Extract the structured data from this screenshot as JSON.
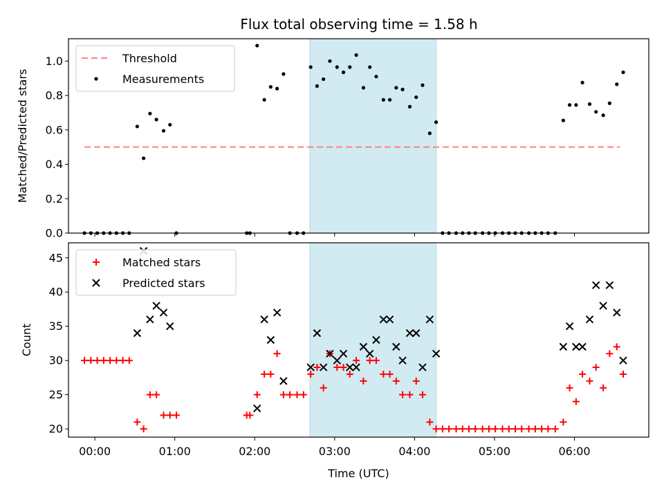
{
  "title": "Flux total observing time = 1.58 h",
  "colors": {
    "threshold": "#ff7f7f",
    "measurement": "#000000",
    "matched": "#ff0000",
    "predicted": "#000000",
    "band": "#add8e6"
  },
  "chart_data": [
    {
      "type": "scatter",
      "name": "ratio",
      "ylabel": "Matched/Predicted stars",
      "xlim": [
        -0.33,
        6.93
      ],
      "ylim": [
        0,
        1.13
      ],
      "yticks": [
        0.0,
        0.2,
        0.4,
        0.6,
        0.8,
        1.0
      ],
      "ytick_labels": [
        "0.0",
        "0.2",
        "0.4",
        "0.6",
        "0.8",
        "1.0"
      ],
      "highlight_band": [
        2.69,
        4.27
      ],
      "threshold": {
        "label": "Threshold",
        "value": 0.5,
        "x_range": [
          -0.13,
          6.57
        ]
      },
      "legend": [
        "Threshold",
        "Measurements"
      ],
      "series": [
        {
          "name": "Measurements",
          "x": [
            -0.13,
            -0.05,
            0.03,
            0.11,
            0.19,
            0.27,
            0.35,
            0.43,
            0.53,
            0.61,
            0.69,
            0.77,
            0.86,
            0.94,
            1.02,
            1.9,
            1.94,
            2.03,
            2.12,
            2.2,
            2.28,
            2.36,
            2.44,
            2.53,
            2.61,
            2.7,
            2.78,
            2.86,
            2.94,
            3.03,
            3.11,
            3.19,
            3.27,
            3.36,
            3.44,
            3.52,
            3.61,
            3.69,
            3.77,
            3.85,
            3.94,
            4.02,
            4.1,
            4.19,
            4.27,
            4.35,
            4.43,
            4.52,
            4.6,
            4.68,
            4.76,
            4.85,
            4.93,
            5.01,
            5.1,
            5.18,
            5.26,
            5.34,
            5.43,
            5.51,
            5.59,
            5.67,
            5.76,
            5.86,
            5.94,
            6.02,
            6.1,
            6.19,
            6.27,
            6.36,
            6.44,
            6.53,
            6.61
          ],
          "y": [
            0,
            0,
            0,
            0,
            0,
            0,
            0,
            0,
            0.62,
            0.435,
            0.695,
            0.66,
            0.595,
            0.63,
            0,
            0,
            0,
            1.09,
            0.775,
            0.85,
            0.84,
            0.925,
            0,
            0,
            0,
            0.965,
            0.855,
            0.895,
            1.0,
            0.965,
            0.935,
            0.965,
            1.035,
            0.845,
            0.965,
            0.91,
            0.775,
            0.775,
            0.845,
            0.835,
            0.735,
            0.79,
            0.86,
            0.58,
            0.645,
            0,
            0,
            0,
            0,
            0,
            0,
            0,
            0,
            0,
            0,
            0,
            0,
            0,
            0,
            0,
            0,
            0,
            0,
            0.655,
            0.745,
            0.745,
            0.875,
            0.75,
            0.705,
            0.685,
            0.755,
            0.865,
            0.935
          ]
        }
      ]
    },
    {
      "type": "scatter",
      "name": "counts",
      "xlabel": "Time (UTC)",
      "ylabel": "Count",
      "xlim": [
        -0.33,
        6.93
      ],
      "ylim": [
        18.8,
        47.2
      ],
      "xticks": [
        0,
        1,
        2,
        3,
        4,
        5,
        6
      ],
      "xtick_labels": [
        "00:00",
        "01:00",
        "02:00",
        "03:00",
        "04:00",
        "05:00",
        "06:00"
      ],
      "yticks": [
        20,
        25,
        30,
        35,
        40,
        45
      ],
      "ytick_labels": [
        "20",
        "25",
        "30",
        "35",
        "40",
        "45"
      ],
      "highlight_band": [
        2.69,
        4.27
      ],
      "legend": [
        "Matched stars",
        "Predicted stars"
      ],
      "series": [
        {
          "name": "Matched stars",
          "x": [
            -0.13,
            -0.05,
            0.03,
            0.11,
            0.19,
            0.27,
            0.35,
            0.43,
            0.53,
            0.61,
            0.69,
            0.77,
            0.86,
            0.94,
            1.02,
            1.9,
            1.94,
            2.03,
            2.12,
            2.2,
            2.28,
            2.36,
            2.44,
            2.53,
            2.61,
            2.7,
            2.78,
            2.86,
            2.94,
            3.03,
            3.11,
            3.19,
            3.27,
            3.36,
            3.44,
            3.52,
            3.61,
            3.69,
            3.77,
            3.85,
            3.94,
            4.02,
            4.1,
            4.19,
            4.27,
            4.35,
            4.43,
            4.52,
            4.6,
            4.68,
            4.76,
            4.85,
            4.93,
            5.01,
            5.1,
            5.18,
            5.26,
            5.34,
            5.43,
            5.51,
            5.59,
            5.67,
            5.76,
            5.86,
            5.94,
            6.02,
            6.1,
            6.19,
            6.27,
            6.36,
            6.44,
            6.53,
            6.61
          ],
          "y": [
            30,
            30,
            30,
            30,
            30,
            30,
            30,
            30,
            21,
            20,
            25,
            25,
            22,
            22,
            22,
            22,
            22,
            25,
            28,
            28,
            31,
            25,
            25,
            25,
            25,
            28,
            29,
            26,
            31,
            29,
            29,
            28,
            30,
            27,
            30,
            30,
            28,
            28,
            27,
            25,
            25,
            27,
            25,
            21,
            20,
            20,
            20,
            20,
            20,
            20,
            20,
            20,
            20,
            20,
            20,
            20,
            20,
            20,
            20,
            20,
            20,
            20,
            20,
            21,
            26,
            24,
            28,
            27,
            29,
            26,
            31,
            32,
            28
          ]
        },
        {
          "name": "Predicted stars",
          "x": [
            0.53,
            0.61,
            0.69,
            0.77,
            0.86,
            0.94,
            2.03,
            2.12,
            2.2,
            2.28,
            2.36,
            2.7,
            2.78,
            2.86,
            2.94,
            3.03,
            3.11,
            3.19,
            3.27,
            3.36,
            3.44,
            3.52,
            3.61,
            3.69,
            3.77,
            3.85,
            3.94,
            4.02,
            4.1,
            4.19,
            4.27,
            5.86,
            5.94,
            6.02,
            6.1,
            6.19,
            6.27,
            6.36,
            6.44,
            6.53,
            6.61
          ],
          "y": [
            34,
            46,
            36,
            38,
            37,
            35,
            23,
            36,
            33,
            37,
            27,
            29,
            34,
            29,
            31,
            30,
            31,
            29,
            29,
            32,
            31,
            33,
            36,
            36,
            32,
            30,
            34,
            34,
            29,
            36,
            31,
            32,
            35,
            32,
            32,
            36,
            41,
            38,
            41,
            37,
            30
          ]
        }
      ]
    }
  ]
}
